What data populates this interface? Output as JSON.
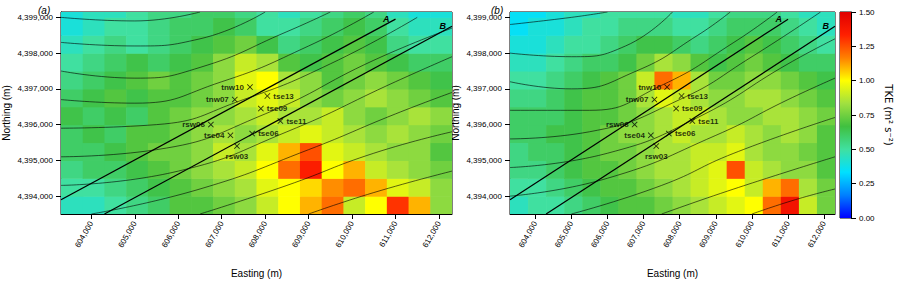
{
  "chart_data": [
    {
      "type": "heatmap",
      "title": "(a)",
      "x_label": "Easting (m)",
      "y_label": "Northing (m)",
      "grid": false,
      "xlim": [
        603300,
        612300
      ],
      "ylim": [
        4393500,
        4399150
      ],
      "xticks": [
        {
          "value": 604000,
          "label": "604,000"
        },
        {
          "value": 605000,
          "label": "605,000"
        },
        {
          "value": 606000,
          "label": "606,000"
        },
        {
          "value": 607000,
          "label": "607,000"
        },
        {
          "value": 608000,
          "label": "608,000"
        },
        {
          "value": 609000,
          "label": "609,000"
        },
        {
          "value": 610000,
          "label": "610,000"
        },
        {
          "value": 611000,
          "label": "611,000"
        },
        {
          "value": 612000,
          "label": "612,000"
        }
      ],
      "yticks": [
        {
          "value": 4394000,
          "label": "4,394,000"
        },
        {
          "value": 4395000,
          "label": "4,395,000"
        },
        {
          "value": 4396000,
          "label": "4,396,000"
        },
        {
          "value": 4397000,
          "label": "4,397,000"
        },
        {
          "value": 4398000,
          "label": "4,398,000"
        },
        {
          "value": 4399000,
          "label": "4,399,000"
        }
      ],
      "x": [
        603550,
        604050,
        604550,
        605050,
        605550,
        606050,
        606550,
        607050,
        607550,
        608050,
        608550,
        609050,
        609550,
        610050,
        610550,
        611050,
        611550,
        612050
      ],
      "y": [
        4393750,
        4394250,
        4394750,
        4395250,
        4395750,
        4396250,
        4396750,
        4397250,
        4397750,
        4398250,
        4398750,
        4399250
      ],
      "values": [
        [
          0.45,
          0.45,
          0.5,
          0.55,
          0.6,
          0.7,
          0.7,
          0.75,
          0.8,
          0.9,
          1.0,
          1.1,
          1.2,
          0.9,
          1.0,
          1.3,
          1.1,
          0.8
        ],
        [
          0.5,
          0.5,
          0.55,
          0.6,
          0.65,
          0.7,
          0.75,
          0.8,
          0.85,
          0.95,
          1.0,
          1.05,
          1.15,
          1.2,
          1.1,
          0.95,
          0.9,
          0.8
        ],
        [
          0.55,
          0.6,
          0.6,
          0.65,
          0.7,
          0.75,
          0.8,
          0.85,
          0.9,
          1.0,
          1.2,
          1.35,
          1.0,
          1.1,
          0.9,
          0.85,
          0.8,
          0.75
        ],
        [
          0.6,
          0.6,
          0.65,
          0.7,
          0.75,
          0.75,
          0.8,
          0.9,
          0.85,
          0.95,
          1.1,
          1.25,
          0.95,
          0.9,
          0.85,
          0.8,
          0.8,
          0.7
        ],
        [
          0.6,
          0.65,
          0.6,
          0.7,
          0.7,
          0.75,
          0.8,
          0.85,
          0.8,
          0.85,
          0.9,
          0.95,
          0.9,
          0.85,
          0.8,
          0.85,
          0.8,
          0.75
        ],
        [
          0.65,
          0.6,
          0.65,
          0.6,
          0.7,
          0.75,
          0.8,
          0.8,
          0.85,
          0.9,
          0.85,
          0.85,
          0.9,
          0.8,
          0.75,
          0.8,
          0.85,
          0.8
        ],
        [
          0.6,
          0.65,
          0.7,
          0.65,
          0.7,
          0.7,
          0.75,
          0.8,
          0.9,
          0.95,
          0.9,
          0.8,
          0.75,
          0.8,
          0.85,
          0.8,
          0.75,
          0.7
        ],
        [
          0.55,
          0.6,
          0.65,
          0.7,
          0.75,
          0.7,
          0.75,
          0.8,
          0.95,
          1.0,
          0.85,
          0.8,
          0.7,
          0.75,
          0.8,
          0.75,
          0.7,
          0.65
        ],
        [
          0.5,
          0.55,
          0.6,
          0.65,
          0.6,
          0.65,
          0.7,
          0.8,
          0.9,
          0.85,
          0.7,
          0.65,
          0.7,
          0.75,
          0.7,
          0.65,
          0.6,
          0.6
        ],
        [
          0.45,
          0.5,
          0.55,
          0.5,
          0.55,
          0.6,
          0.65,
          0.7,
          0.75,
          0.65,
          0.55,
          0.6,
          0.65,
          0.7,
          0.65,
          0.55,
          0.5,
          0.5
        ],
        [
          0.4,
          0.45,
          0.5,
          0.5,
          0.55,
          0.6,
          0.6,
          0.65,
          0.6,
          0.5,
          0.5,
          0.55,
          0.6,
          0.65,
          0.6,
          0.5,
          0.45,
          0.45
        ],
        [
          0.4,
          0.45,
          0.45,
          0.5,
          0.55,
          0.55,
          0.6,
          0.6,
          0.55,
          0.5,
          0.45,
          0.5,
          0.55,
          0.6,
          0.55,
          0.45,
          0.4,
          0.4
        ]
      ],
      "stations": {
        "marker": "x",
        "color": "#000000",
        "names": [
          "tnw10",
          "tnw07",
          "tse13",
          "tse09",
          "tse11",
          "rsw06",
          "tse04",
          "tse06",
          "rsw03"
        ],
        "x": [
          607650,
          607300,
          608050,
          607900,
          608350,
          606750,
          607200,
          607700,
          607350
        ],
        "y": [
          4397050,
          4396700,
          4396800,
          4396450,
          4396100,
          4396000,
          4395700,
          4395750,
          4395400
        ]
      },
      "lines": [
        {
          "name": "A",
          "color": "#000000",
          "x": [
            603300,
            611000
          ],
          "y": [
            4393900,
            4398950
          ]
        },
        {
          "name": "B",
          "color": "#000000",
          "x": [
            604300,
            612300
          ],
          "y": [
            4393500,
            4398750
          ]
        }
      ],
      "streamlines": [
        {
          "x": [
            603300,
            605000,
            606500
          ],
          "y": [
            4399000,
            4398900,
            4399150
          ]
        },
        {
          "x": [
            603300,
            605000,
            606500,
            608000
          ],
          "y": [
            4398300,
            4398200,
            4398400,
            4399150
          ]
        },
        {
          "x": [
            603300,
            605000,
            606500,
            608500,
            609500
          ],
          "y": [
            4397500,
            4397300,
            4397600,
            4398600,
            4399150
          ]
        },
        {
          "x": [
            603300,
            605000,
            607000,
            609000,
            610500
          ],
          "y": [
            4396700,
            4396600,
            4397200,
            4398200,
            4399150
          ]
        },
        {
          "x": [
            603300,
            605500,
            607500,
            609500,
            611500
          ],
          "y": [
            4395900,
            4396000,
            4396700,
            4397700,
            4399000
          ]
        },
        {
          "x": [
            603300,
            605500,
            608000,
            610500,
            612300
          ],
          "y": [
            4395100,
            4395300,
            4396300,
            4397800,
            4398700
          ]
        },
        {
          "x": [
            603300,
            606000,
            608500,
            611000,
            612300
          ],
          "y": [
            4394300,
            4394700,
            4395800,
            4397200,
            4397900
          ]
        },
        {
          "x": [
            604000,
            606500,
            609000,
            611000,
            612300
          ],
          "y": [
            4393500,
            4394200,
            4395300,
            4396300,
            4396900
          ]
        },
        {
          "x": [
            606500,
            608500,
            610500,
            612300
          ],
          "y": [
            4393500,
            4394300,
            4395200,
            4395800
          ]
        },
        {
          "x": [
            609000,
            610500,
            612300
          ],
          "y": [
            4393500,
            4394100,
            4394700
          ]
        }
      ]
    },
    {
      "type": "heatmap",
      "title": "(b)",
      "x_label": "Easting (m)",
      "y_label": "Northing (m)",
      "grid": false,
      "xlim": [
        603300,
        612300
      ],
      "ylim": [
        4393500,
        4399150
      ],
      "xticks": [
        {
          "value": 604000,
          "label": "604,000"
        },
        {
          "value": 605000,
          "label": "605,000"
        },
        {
          "value": 606000,
          "label": "606,000"
        },
        {
          "value": 607000,
          "label": "607,000"
        },
        {
          "value": 608000,
          "label": "608,000"
        },
        {
          "value": 609000,
          "label": "609,000"
        },
        {
          "value": 610000,
          "label": "610,000"
        },
        {
          "value": 611000,
          "label": "611,000"
        },
        {
          "value": 612000,
          "label": "612,000"
        }
      ],
      "yticks": [
        {
          "value": 4394000,
          "label": "4,394,000"
        },
        {
          "value": 4395000,
          "label": "4,395,000"
        },
        {
          "value": 4396000,
          "label": "4,396,000"
        },
        {
          "value": 4397000,
          "label": "4,397,000"
        },
        {
          "value": 4398000,
          "label": "4,398,000"
        },
        {
          "value": 4399000,
          "label": "4,399,000"
        }
      ],
      "x": [
        603550,
        604050,
        604550,
        605050,
        605550,
        606050,
        606550,
        607050,
        607550,
        608050,
        608550,
        609050,
        609550,
        610050,
        610550,
        611050,
        611550,
        612050
      ],
      "y": [
        4393750,
        4394250,
        4394750,
        4395250,
        4395750,
        4396250,
        4396750,
        4397250,
        4397750,
        4398250,
        4398750,
        4399250
      ],
      "values": [
        [
          0.45,
          0.5,
          0.5,
          0.55,
          0.6,
          0.65,
          0.7,
          0.7,
          0.75,
          0.8,
          0.85,
          0.9,
          0.95,
          1.0,
          1.2,
          1.4,
          0.9,
          0.75
        ],
        [
          0.5,
          0.5,
          0.55,
          0.6,
          0.65,
          0.7,
          0.7,
          0.75,
          0.8,
          0.85,
          0.9,
          0.95,
          1.0,
          0.9,
          1.1,
          1.2,
          0.85,
          0.75
        ],
        [
          0.55,
          0.55,
          0.6,
          0.65,
          0.7,
          0.7,
          0.75,
          0.8,
          0.85,
          0.85,
          0.9,
          0.95,
          1.25,
          0.9,
          0.85,
          0.8,
          0.8,
          0.7
        ],
        [
          0.55,
          0.6,
          0.6,
          0.65,
          0.7,
          0.75,
          0.75,
          0.8,
          0.85,
          0.85,
          0.9,
          0.9,
          0.95,
          0.85,
          0.8,
          0.8,
          0.75,
          0.7
        ],
        [
          0.6,
          0.6,
          0.65,
          0.65,
          0.7,
          0.75,
          0.8,
          0.8,
          0.85,
          0.9,
          0.85,
          0.85,
          0.9,
          0.85,
          0.8,
          0.85,
          0.8,
          0.7
        ],
        [
          0.6,
          0.6,
          0.6,
          0.65,
          0.7,
          0.7,
          0.75,
          0.8,
          0.85,
          0.9,
          0.9,
          0.85,
          0.8,
          0.8,
          0.85,
          0.85,
          0.8,
          0.75
        ],
        [
          0.55,
          0.55,
          0.6,
          0.65,
          0.7,
          0.7,
          0.75,
          0.85,
          0.95,
          0.9,
          0.85,
          0.8,
          0.8,
          0.85,
          0.85,
          0.8,
          0.75,
          0.7
        ],
        [
          0.5,
          0.5,
          0.55,
          0.6,
          0.65,
          0.7,
          0.75,
          0.9,
          1.2,
          1.1,
          0.85,
          0.75,
          0.75,
          0.8,
          0.8,
          0.75,
          0.7,
          0.65
        ],
        [
          0.45,
          0.45,
          0.5,
          0.55,
          0.6,
          0.6,
          0.65,
          0.75,
          0.85,
          0.8,
          0.7,
          0.65,
          0.7,
          0.75,
          0.7,
          0.65,
          0.6,
          0.6
        ],
        [
          0.4,
          0.4,
          0.45,
          0.5,
          0.5,
          0.55,
          0.6,
          0.65,
          0.65,
          0.6,
          0.55,
          0.6,
          0.65,
          0.7,
          0.65,
          0.6,
          0.55,
          0.5
        ],
        [
          0.35,
          0.4,
          0.4,
          0.45,
          0.5,
          0.5,
          0.55,
          0.55,
          0.55,
          0.5,
          0.5,
          0.55,
          0.6,
          0.6,
          0.6,
          0.55,
          0.5,
          0.45
        ],
        [
          0.35,
          0.35,
          0.4,
          0.45,
          0.45,
          0.5,
          0.5,
          0.5,
          0.5,
          0.45,
          0.45,
          0.5,
          0.55,
          0.55,
          0.55,
          0.5,
          0.45,
          0.45
        ]
      ],
      "stations": {
        "marker": "x",
        "color": "#000000",
        "names": [
          "tnw10",
          "tnw07",
          "tse13",
          "tse09",
          "tse11",
          "rsw06",
          "tse04",
          "tse06",
          "rsw03"
        ],
        "x": [
          607650,
          607300,
          608050,
          607900,
          608350,
          606750,
          607200,
          607700,
          607350
        ],
        "y": [
          4397050,
          4396700,
          4396800,
          4396450,
          4396100,
          4396000,
          4395700,
          4395750,
          4395400
        ]
      },
      "lines": [
        {
          "name": "A",
          "color": "#000000",
          "x": [
            603300,
            611000
          ],
          "y": [
            4393900,
            4398950
          ]
        },
        {
          "name": "B",
          "color": "#000000",
          "x": [
            604300,
            612300
          ],
          "y": [
            4393500,
            4398750
          ]
        }
      ],
      "streamlines": [
        {
          "x": [
            603300,
            605000,
            606000
          ],
          "y": [
            4398800,
            4399000,
            4399150
          ]
        },
        {
          "x": [
            603300,
            605000,
            606500,
            607800
          ],
          "y": [
            4398000,
            4397900,
            4398200,
            4399150
          ]
        },
        {
          "x": [
            603300,
            605000,
            606800,
            608500,
            609400
          ],
          "y": [
            4397200,
            4397000,
            4397500,
            4398500,
            4399150
          ]
        },
        {
          "x": [
            603300,
            605500,
            607500,
            609500,
            610700
          ],
          "y": [
            4396400,
            4396400,
            4397100,
            4398300,
            4399150
          ]
        },
        {
          "x": [
            603300,
            605500,
            608000,
            610000,
            611900
          ],
          "y": [
            4395600,
            4395800,
            4396700,
            4397900,
            4399150
          ]
        },
        {
          "x": [
            603300,
            606000,
            608500,
            611000,
            612300
          ],
          "y": [
            4394800,
            4395200,
            4396200,
            4397700,
            4398400
          ]
        },
        {
          "x": [
            603300,
            606000,
            609000,
            611000,
            612300
          ],
          "y": [
            4394000,
            4394500,
            4395700,
            4396700,
            4397300
          ]
        },
        {
          "x": [
            605000,
            607500,
            609500,
            612300
          ],
          "y": [
            4393500,
            4394300,
            4395200,
            4396200
          ]
        },
        {
          "x": [
            607500,
            609500,
            612300
          ],
          "y": [
            4393500,
            4394200,
            4395100
          ]
        },
        {
          "x": [
            610000,
            611200,
            612300
          ],
          "y": [
            4393500,
            4393900,
            4394200
          ]
        }
      ],
      "colorbar": {
        "label": "TKE (m² s⁻²)",
        "range": [
          0,
          1.5
        ],
        "ticks": [
          {
            "value": 0,
            "label": "0.00"
          },
          0.25,
          {
            "value": 0.5,
            "label": "0.50"
          },
          0.75,
          {
            "value": 1,
            "label": "1.00"
          },
          1.25,
          {
            "value": 1.5,
            "label": "1.50"
          }
        ]
      }
    }
  ]
}
